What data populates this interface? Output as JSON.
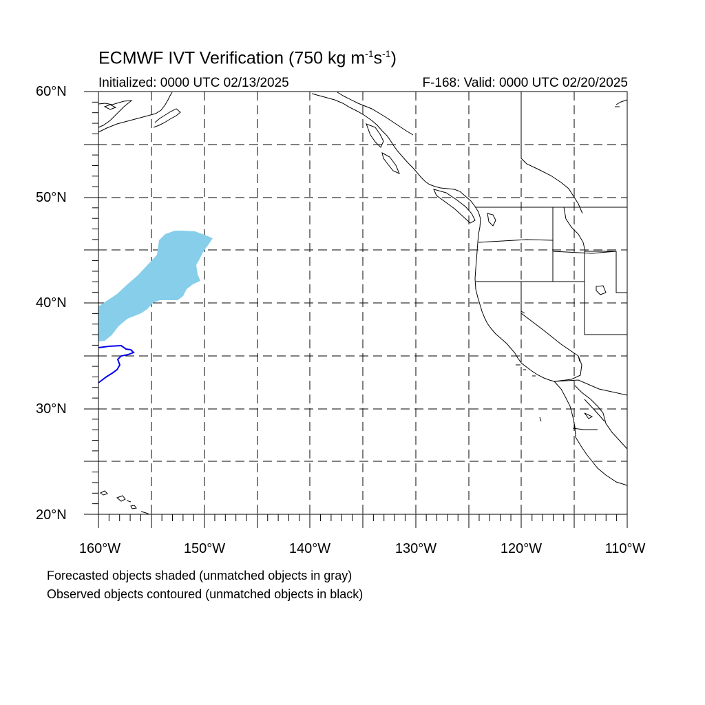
{
  "title": {
    "prefix": "ECMWF IVT Verification (750 kg m",
    "exp1": "-1",
    "mid": "s",
    "exp2": "-1",
    "suffix": ")"
  },
  "initialized": "Initialized: 0000 UTC 02/13/2025",
  "valid": "F-168: Valid: 0000 UTC 02/20/2025",
  "lat_labels": [
    "60°N",
    "50°N",
    "40°N",
    "30°N",
    "20°N"
  ],
  "lon_labels": [
    "160°W",
    "150°W",
    "140°W",
    "130°W",
    "120°W",
    "110°W"
  ],
  "notes": [
    "Forecasted objects shaded (unmatched objects in gray)",
    "Observed objects contoured (unmatched objects in black)"
  ],
  "map_data": {
    "lon_range": [
      -160,
      -110
    ],
    "lat_range": [
      20,
      60
    ],
    "gridlines": "dashed every 5°",
    "forecast_object_color": "#87ceeb",
    "observed_object_color": "#0000ee",
    "coastline_color": "#000000"
  }
}
